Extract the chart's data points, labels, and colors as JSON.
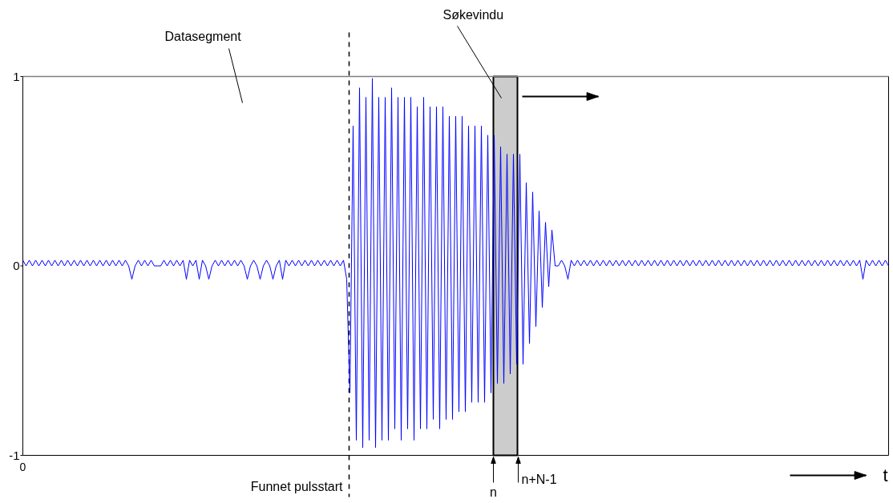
{
  "chart_data": {
    "type": "line",
    "categories": [
      "0",
      null,
      null,
      null,
      null,
      null,
      null,
      null,
      null,
      null,
      null,
      null,
      null,
      null,
      null,
      null,
      null,
      null,
      null,
      null,
      null,
      null,
      null,
      null,
      null,
      null,
      null,
      null,
      null,
      null,
      null,
      null,
      null,
      null,
      null,
      null,
      null,
      null,
      null,
      null,
      null,
      null,
      null,
      null,
      null,
      null,
      null,
      null,
      null,
      null,
      null,
      null,
      null,
      null,
      null,
      null,
      null,
      null,
      null,
      null,
      null,
      null,
      null,
      null,
      null,
      null,
      null,
      null,
      null,
      null,
      null,
      null,
      null,
      null,
      null,
      null,
      null,
      null,
      null,
      null,
      null,
      null,
      null,
      null,
      null,
      null,
      null,
      null,
      null,
      null,
      null,
      null,
      null,
      null,
      null,
      null,
      null,
      null,
      null,
      null,
      null,
      null,
      null,
      null,
      null,
      null,
      null,
      null,
      null,
      null,
      null,
      null,
      null,
      null,
      null,
      null,
      null,
      null,
      null,
      null,
      null,
      null,
      null,
      null,
      null,
      null,
      null,
      null,
      null,
      null,
      null,
      null,
      null,
      null,
      null,
      null,
      null,
      null,
      null,
      null,
      null,
      null,
      null,
      null,
      null,
      null,
      null,
      null,
      null,
      null,
      null,
      null,
      null,
      null,
      null,
      null,
      null,
      null,
      null,
      null,
      null,
      null,
      null,
      null,
      null,
      null,
      null,
      null,
      null,
      null,
      null,
      null,
      null,
      null,
      null,
      null,
      null,
      null,
      null,
      null,
      null,
      null,
      null,
      null,
      null,
      null,
      null,
      null,
      null,
      null,
      null,
      null,
      null,
      null,
      null,
      null,
      null,
      null,
      null,
      null,
      null,
      null,
      null,
      null,
      null,
      null,
      null,
      null,
      null,
      null,
      null,
      null,
      null,
      null,
      null,
      null,
      null,
      null,
      null,
      null,
      null,
      null,
      null,
      null,
      null,
      null,
      null,
      null,
      null,
      null,
      null,
      null,
      null,
      null,
      null,
      null,
      null,
      null,
      null,
      null,
      null,
      null,
      null,
      null,
      null,
      null,
      null,
      null,
      null,
      null,
      null,
      null,
      null,
      null,
      null,
      null,
      null,
      null,
      null,
      null,
      null,
      null,
      null,
      null,
      null,
      null,
      null,
      null,
      null,
      null,
      null
    ],
    "series": [
      {
        "color": "#0000ff",
        "values": [
          0.03,
          0,
          0.03,
          0,
          0.03,
          0,
          0.03,
          0,
          0.03,
          0,
          0.03,
          0,
          0.03,
          0,
          0.03,
          0,
          0.03,
          0,
          0.03,
          0,
          0.03,
          0,
          0.03,
          0,
          0.03,
          0,
          0.03,
          0,
          0.03,
          0,
          0.03,
          0,
          0.03,
          0,
          -0.07,
          0,
          0.03,
          0,
          0.03,
          0,
          0.03,
          0,
          0,
          0,
          0.03,
          0,
          0.03,
          0,
          0.03,
          0,
          0.03,
          -0.07,
          0.03,
          0,
          0.03,
          -0.07,
          0.03,
          0,
          -0.07,
          0,
          0.03,
          0,
          0.03,
          0,
          0.03,
          0,
          0.03,
          0,
          0.03,
          0,
          -0.07,
          0,
          0.03,
          0,
          -0.07,
          0,
          0.03,
          0,
          -0.07,
          0,
          0.03,
          -0.07,
          0.03,
          0,
          0.03,
          0,
          0.03,
          0,
          0.03,
          0,
          0.03,
          0,
          0.03,
          0,
          0.03,
          0,
          0.03,
          0,
          0.03,
          0,
          0.03,
          -0.07,
          -0.67,
          0.74,
          -0.92,
          0.94,
          -0.96,
          0.89,
          -0.92,
          0.99,
          -0.96,
          0.89,
          -0.92,
          0.89,
          -0.92,
          0.94,
          -0.86,
          0.89,
          -0.92,
          0.89,
          -0.86,
          0.89,
          -0.92,
          0.84,
          -0.86,
          0.89,
          -0.86,
          0.84,
          -0.81,
          0.84,
          -0.86,
          0.84,
          -0.81,
          0.79,
          -0.81,
          0.79,
          -0.77,
          0.79,
          -0.77,
          0.74,
          -0.72,
          0.74,
          -0.72,
          0.74,
          -0.72,
          0.69,
          -0.67,
          0.69,
          -0.62,
          0.63,
          -0.62,
          0.59,
          -0.57,
          0.59,
          -0.52,
          0.59,
          -0.52,
          0.44,
          -0.41,
          0.39,
          -0.32,
          0.29,
          -0.22,
          0.23,
          -0.11,
          0.19,
          0,
          0,
          0.03,
          0,
          -0.07,
          0.03,
          0,
          0.03,
          0,
          0.03,
          0,
          0.03,
          0,
          0.03,
          0,
          0.03,
          0,
          0.03,
          0,
          0.03,
          0,
          0.03,
          0,
          0.03,
          0,
          0.03,
          0,
          0.03,
          0,
          0.03,
          0,
          0.03,
          0,
          0.03,
          0,
          0.03,
          0,
          0.03,
          0,
          0.03,
          0,
          0.03,
          0,
          0.03,
          0,
          0.03,
          0,
          0.03,
          0,
          0.03,
          0,
          0.03,
          0,
          0.03,
          0,
          0.03,
          0,
          0.03,
          0,
          0.03,
          0,
          0.03,
          0,
          0.03,
          0,
          0.03,
          0,
          0.03,
          0,
          0.03,
          0,
          0.03,
          0,
          0.03,
          0,
          0.03,
          0,
          0.03,
          0,
          0.03,
          0,
          0.03,
          0,
          0.03,
          0,
          0.03,
          0,
          0.03,
          0,
          0.03,
          0,
          0.03,
          0,
          0.03,
          0,
          0.03,
          -0.07,
          0.03,
          0,
          0.03,
          0,
          0.03,
          0,
          0.03,
          0
        ]
      }
    ],
    "ylim": [
      -1,
      1
    ],
    "yticks": [
      {
        "value": -1,
        "label": "-1"
      },
      {
        "value": 0,
        "label": "0"
      },
      {
        "value": 1,
        "label": "1"
      }
    ],
    "grid": false,
    "marker": "none",
    "line_style": "solid",
    "annotations": [
      "Datasegment",
      "Søkevindu",
      "Funnet pulsstart",
      "n",
      "n+N-1",
      "t"
    ]
  }
}
